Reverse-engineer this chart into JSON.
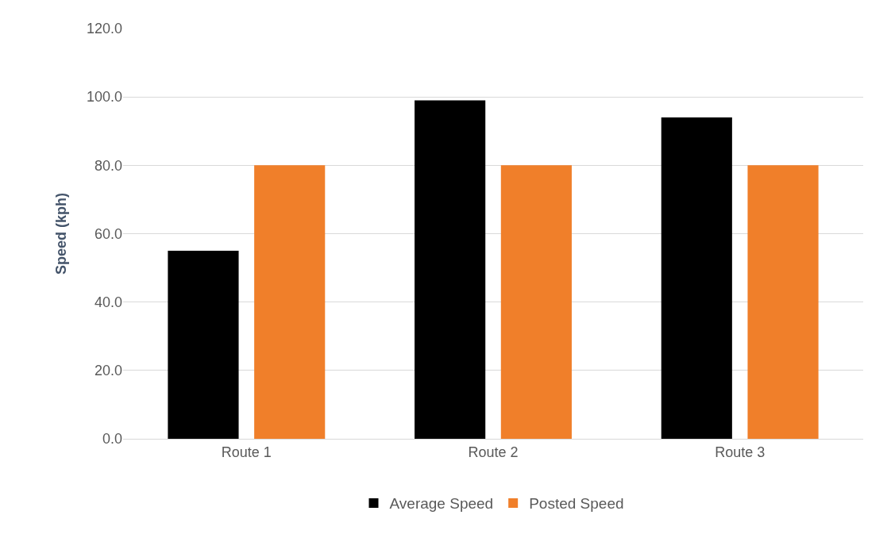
{
  "chart_data": {
    "type": "bar",
    "ylabel": "Speed (kph)",
    "categories": [
      "Route 1",
      "Route 2",
      "Route 3"
    ],
    "series": [
      {
        "name": "Average Speed",
        "color": "#000000",
        "values": [
          55,
          99,
          94
        ]
      },
      {
        "name": "Posted Speed",
        "color": "#f07f2a",
        "values": [
          80,
          80,
          80
        ]
      }
    ],
    "ylim": [
      0,
      120
    ],
    "yticks": [
      {
        "value": 0,
        "label": "0.0"
      },
      {
        "value": 20,
        "label": "20.0"
      },
      {
        "value": 40,
        "label": "40.0"
      },
      {
        "value": 60,
        "label": "60.0"
      },
      {
        "value": 80,
        "label": "80.0"
      },
      {
        "value": 100,
        "label": "100.0"
      },
      {
        "value": 120,
        "label": "120.0"
      }
    ],
    "grid": "y",
    "legend": "bottom"
  }
}
